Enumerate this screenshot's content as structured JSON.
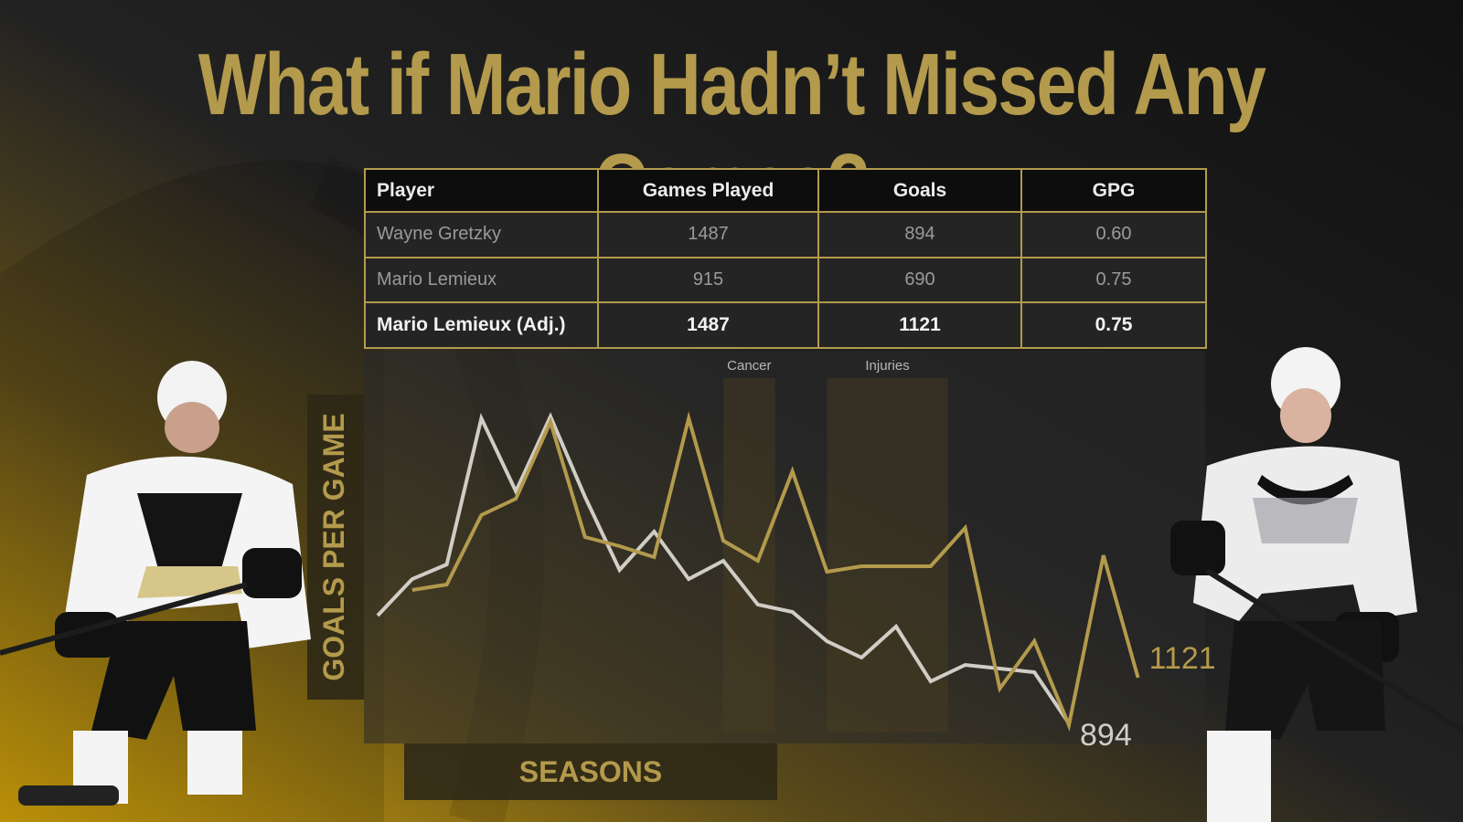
{
  "title": "What if Mario Hadn’t Missed Any Games?",
  "colors": {
    "accent": "#b39a4c",
    "gretzky_line": "#d0cdc6",
    "background": "#181818"
  },
  "table": {
    "headers": [
      "Player",
      "Games Played",
      "Goals",
      "GPG"
    ],
    "rows": [
      {
        "player": "Wayne Gretzky",
        "games": "1487",
        "goals": "894",
        "gpg": "0.60"
      },
      {
        "player": "Mario Lemieux",
        "games": "915",
        "goals": "690",
        "gpg": "0.75"
      },
      {
        "player": "Mario Lemieux (Adj.)",
        "games": "1487",
        "goals": "1121",
        "gpg": "0.75"
      }
    ]
  },
  "chart_data": {
    "type": "line",
    "title": "",
    "xlabel": "SEASONS",
    "ylabel": "GOALS PER GAME",
    "grid": false,
    "ylim": [
      0,
      2
    ],
    "series": [
      {
        "name": "Wayne Gretzky",
        "color": "#d0cdc6",
        "end_label": "894",
        "values": [
          0.68,
          0.88,
          0.96,
          1.76,
          1.36,
          1.77,
          1.33,
          0.93,
          1.14,
          0.88,
          0.98,
          0.74,
          0.7,
          0.54,
          0.45,
          0.62,
          0.32,
          0.41,
          0.39,
          0.37,
          0.09
        ]
      },
      {
        "name": "Mario Lemieux (Adj.)",
        "color": "#b39a4c",
        "end_label": "1121",
        "values": [
          0.82,
          0.85,
          1.23,
          1.32,
          1.74,
          1.11,
          1.06,
          1.0,
          1.76,
          1.09,
          0.98,
          1.47,
          0.92,
          0.95,
          0.95,
          0.95,
          1.16,
          0.28,
          0.54,
          0.08,
          1.01,
          0.34
        ]
      }
    ],
    "annotations": [
      {
        "label": "Cancer",
        "start": 10,
        "end": 11.5
      },
      {
        "label": "Injuries",
        "start": 13,
        "end": 16.5
      }
    ]
  }
}
